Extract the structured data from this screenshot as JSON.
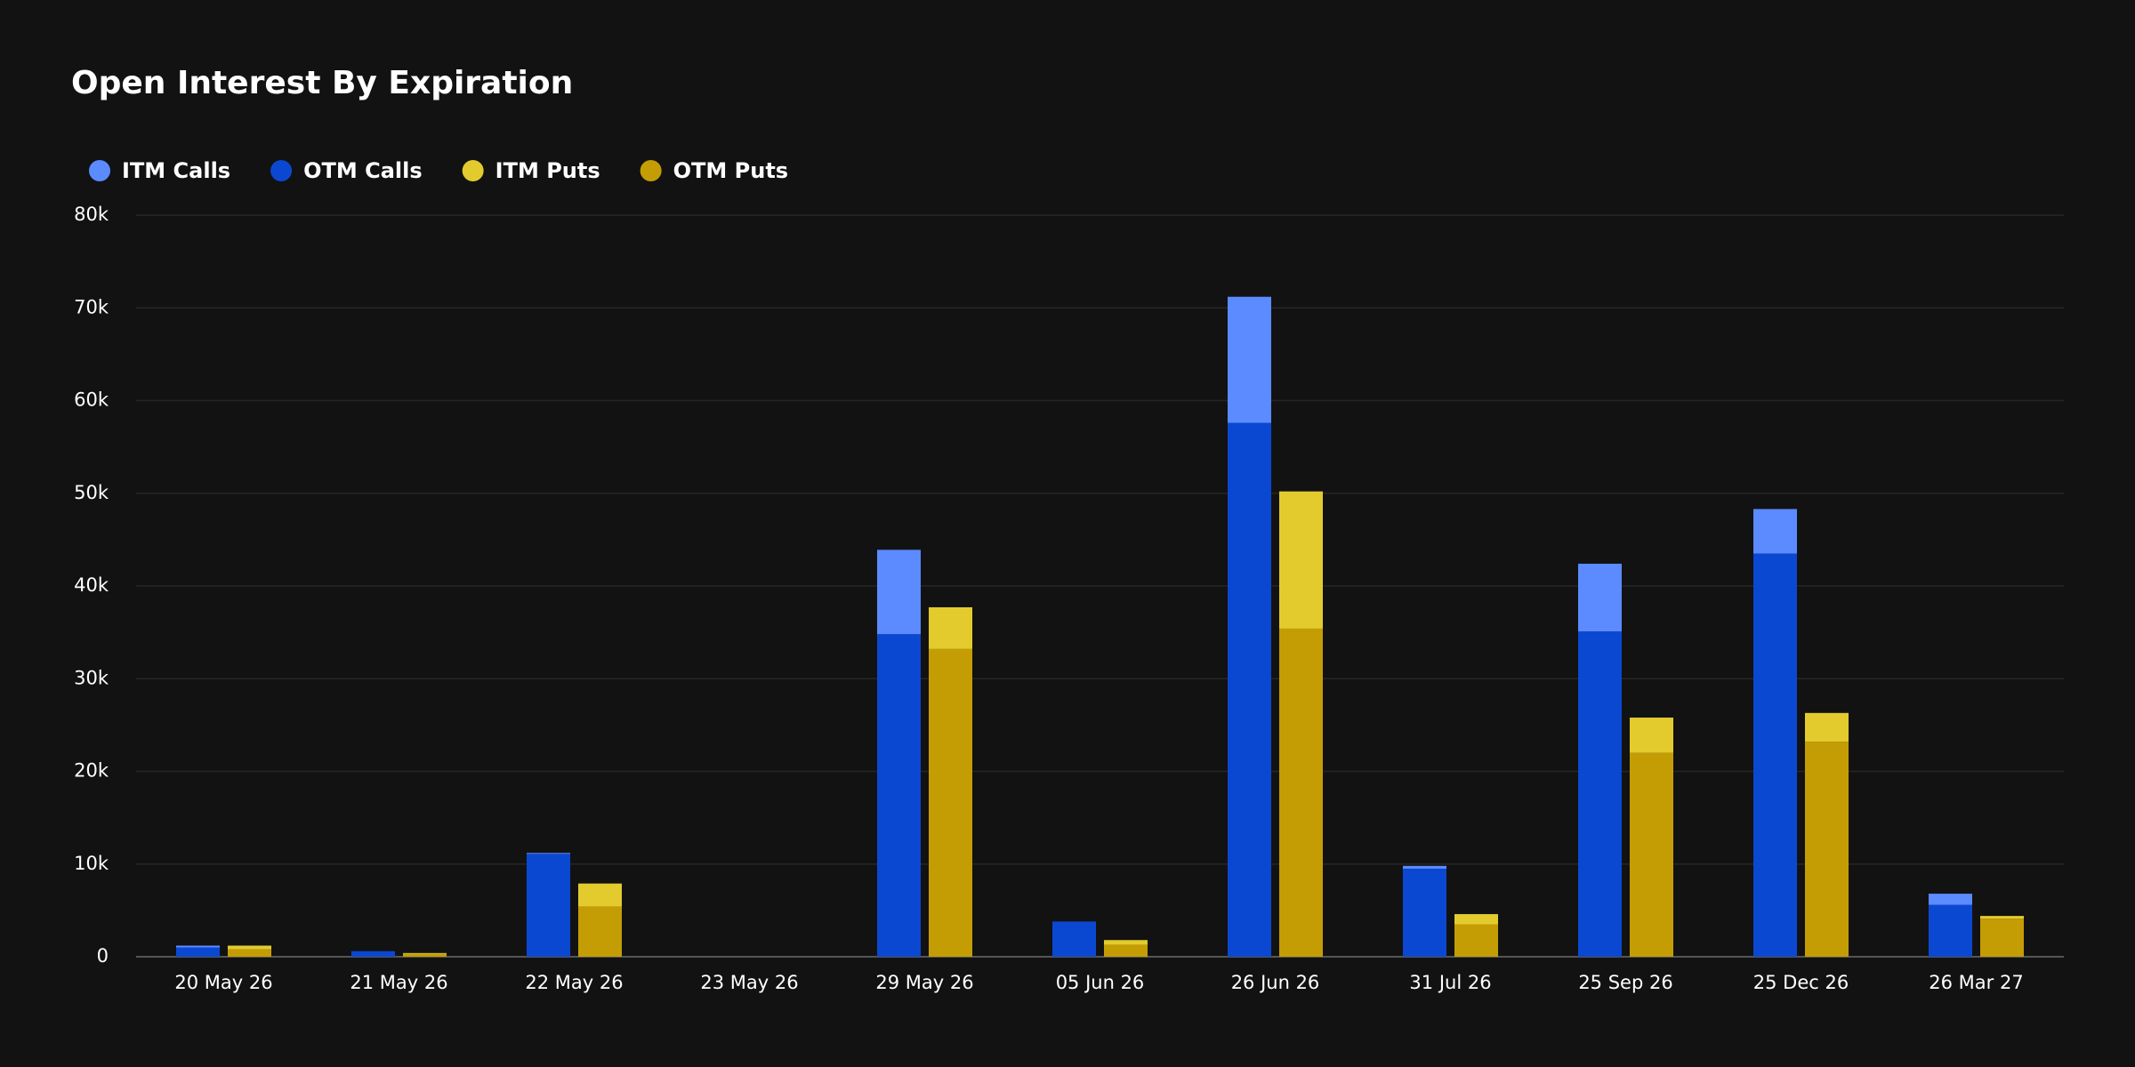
{
  "chart_data": {
    "type": "bar",
    "title": "Open Interest By Expiration",
    "categories": [
      "20 May 26",
      "21 May 26",
      "22 May 26",
      "23 May 26",
      "29 May 26",
      "05 Jun 26",
      "26 Jun 26",
      "31 Jul 26",
      "25 Sep 26",
      "25 Dec 26",
      "26 Mar 27"
    ],
    "series": [
      {
        "name": "ITM Calls",
        "color": "#5b8bff",
        "values": [
          200,
          0,
          100,
          0,
          9100,
          0,
          13600,
          300,
          7300,
          4800,
          1200
        ]
      },
      {
        "name": "OTM Calls",
        "color": "#0b48d2",
        "values": [
          1000,
          600,
          11100,
          0,
          34800,
          3800,
          57600,
          9500,
          35100,
          43500,
          5600
        ]
      },
      {
        "name": "ITM Puts",
        "color": "#e3cb2e",
        "values": [
          400,
          100,
          2500,
          0,
          4500,
          500,
          14800,
          1100,
          3800,
          3100,
          300
        ]
      },
      {
        "name": "OTM Puts",
        "color": "#c49d04",
        "values": [
          800,
          300,
          5400,
          0,
          33200,
          1300,
          35400,
          3500,
          22000,
          23200,
          4100
        ]
      }
    ],
    "ylim": [
      0,
      80000
    ],
    "yticks": [
      0,
      {
        "value": 10000,
        "label": "10k"
      },
      {
        "value": 20000,
        "label": "20k"
      },
      {
        "value": 30000,
        "label": "30k"
      },
      {
        "value": 40000,
        "label": "40k"
      },
      {
        "value": 50000,
        "label": "50k"
      },
      {
        "value": 60000,
        "label": "60k"
      },
      {
        "value": 70000,
        "label": "70k"
      },
      {
        "value": 80000,
        "label": "80k"
      }
    ],
    "grid": true
  }
}
